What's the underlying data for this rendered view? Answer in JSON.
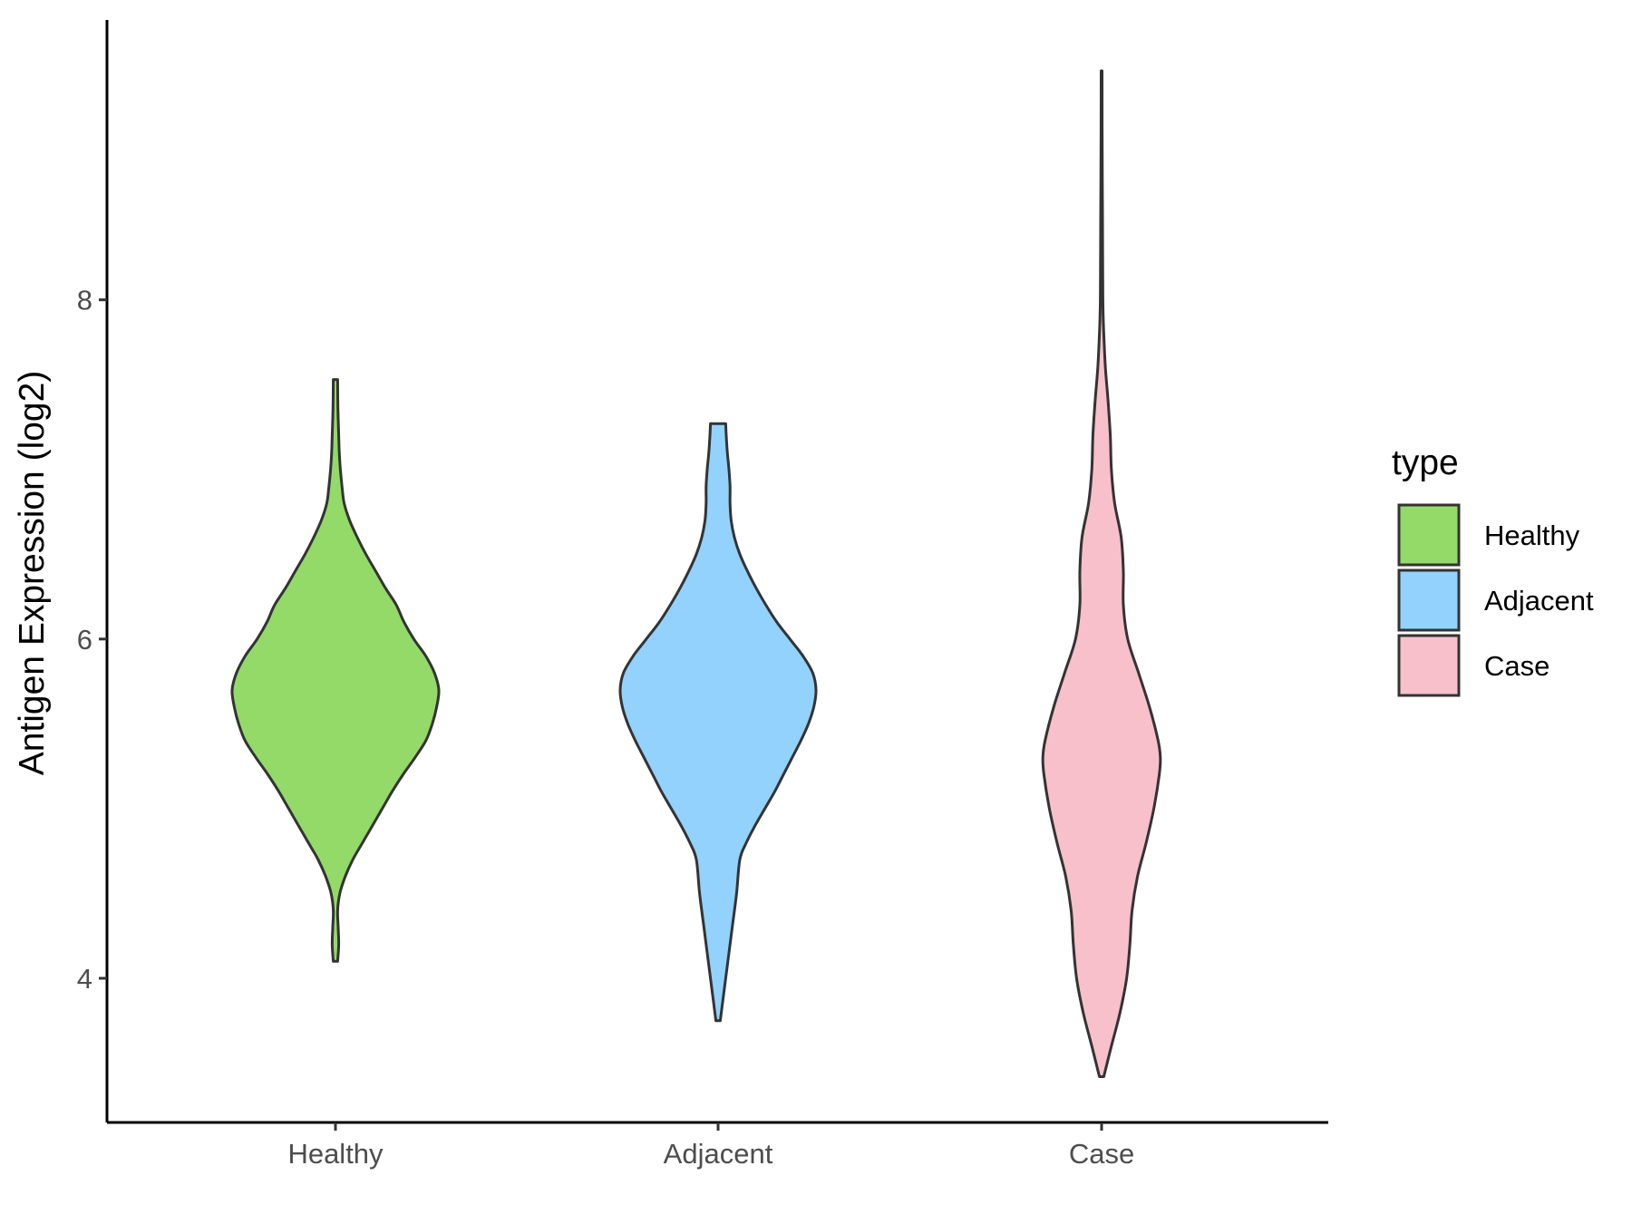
{
  "chart_data": {
    "type": "violin",
    "title": "",
    "xlabel": "",
    "ylabel": "Antigen Expression (log2)",
    "ylim": [
      3.15,
      9.65
    ],
    "yticks": [
      4,
      6,
      8
    ],
    "categories": [
      "Healthy",
      "Adjacent",
      "Case"
    ],
    "grid": false,
    "legend": {
      "title": "type",
      "position": "right",
      "entries": [
        "Healthy",
        "Adjacent",
        "Case"
      ]
    },
    "series": [
      {
        "name": "Healthy",
        "color": "#93DA69",
        "min": 4.1,
        "max": 7.53,
        "profile": [
          [
            4.1,
            0.02
          ],
          [
            4.2,
            0.03
          ],
          [
            4.3,
            0.025
          ],
          [
            4.4,
            0.02
          ],
          [
            4.5,
            0.04
          ],
          [
            4.6,
            0.09
          ],
          [
            4.7,
            0.16
          ],
          [
            4.8,
            0.25
          ],
          [
            4.9,
            0.34
          ],
          [
            5.0,
            0.43
          ],
          [
            5.1,
            0.52
          ],
          [
            5.2,
            0.62
          ],
          [
            5.3,
            0.73
          ],
          [
            5.4,
            0.83
          ],
          [
            5.5,
            0.89
          ],
          [
            5.6,
            0.93
          ],
          [
            5.7,
            0.95
          ],
          [
            5.8,
            0.91
          ],
          [
            5.9,
            0.83
          ],
          [
            6.0,
            0.72
          ],
          [
            6.1,
            0.63
          ],
          [
            6.2,
            0.56
          ],
          [
            6.3,
            0.46
          ],
          [
            6.4,
            0.37
          ],
          [
            6.5,
            0.28
          ],
          [
            6.6,
            0.2
          ],
          [
            6.7,
            0.13
          ],
          [
            6.8,
            0.08
          ],
          [
            6.9,
            0.06
          ],
          [
            7.0,
            0.045
          ],
          [
            7.1,
            0.035
          ],
          [
            7.2,
            0.03
          ],
          [
            7.3,
            0.025
          ],
          [
            7.4,
            0.022
          ],
          [
            7.53,
            0.02
          ]
        ]
      },
      {
        "name": "Adjacent",
        "color": "#92D2FC",
        "min": 3.75,
        "max": 7.27,
        "profile": [
          [
            3.75,
            0.02
          ],
          [
            3.9,
            0.05
          ],
          [
            4.1,
            0.09
          ],
          [
            4.3,
            0.13
          ],
          [
            4.5,
            0.17
          ],
          [
            4.7,
            0.2
          ],
          [
            4.8,
            0.26
          ],
          [
            4.9,
            0.34
          ],
          [
            5.0,
            0.43
          ],
          [
            5.1,
            0.52
          ],
          [
            5.2,
            0.6
          ],
          [
            5.3,
            0.68
          ],
          [
            5.4,
            0.76
          ],
          [
            5.5,
            0.83
          ],
          [
            5.6,
            0.88
          ],
          [
            5.7,
            0.9
          ],
          [
            5.8,
            0.87
          ],
          [
            5.9,
            0.78
          ],
          [
            6.0,
            0.66
          ],
          [
            6.1,
            0.54
          ],
          [
            6.2,
            0.44
          ],
          [
            6.3,
            0.35
          ],
          [
            6.4,
            0.27
          ],
          [
            6.5,
            0.2
          ],
          [
            6.6,
            0.15
          ],
          [
            6.7,
            0.12
          ],
          [
            6.8,
            0.11
          ],
          [
            6.9,
            0.11
          ],
          [
            7.0,
            0.1
          ],
          [
            7.1,
            0.085
          ],
          [
            7.2,
            0.075
          ],
          [
            7.27,
            0.07
          ]
        ]
      },
      {
        "name": "Case",
        "color": "#F7C0CB",
        "min": 3.42,
        "max": 9.35,
        "profile": [
          [
            3.42,
            0.02
          ],
          [
            3.6,
            0.09
          ],
          [
            3.8,
            0.17
          ],
          [
            4.0,
            0.23
          ],
          [
            4.2,
            0.26
          ],
          [
            4.4,
            0.28
          ],
          [
            4.6,
            0.33
          ],
          [
            4.8,
            0.41
          ],
          [
            5.0,
            0.48
          ],
          [
            5.2,
            0.53
          ],
          [
            5.3,
            0.54
          ],
          [
            5.4,
            0.52
          ],
          [
            5.6,
            0.44
          ],
          [
            5.8,
            0.34
          ],
          [
            6.0,
            0.24
          ],
          [
            6.2,
            0.2
          ],
          [
            6.4,
            0.2
          ],
          [
            6.6,
            0.18
          ],
          [
            6.8,
            0.12
          ],
          [
            7.0,
            0.09
          ],
          [
            7.2,
            0.08
          ],
          [
            7.4,
            0.06
          ],
          [
            7.6,
            0.035
          ],
          [
            7.8,
            0.02
          ],
          [
            8.0,
            0.012
          ],
          [
            8.5,
            0.008
          ],
          [
            9.0,
            0.005
          ],
          [
            9.35,
            0.004
          ]
        ]
      }
    ]
  }
}
